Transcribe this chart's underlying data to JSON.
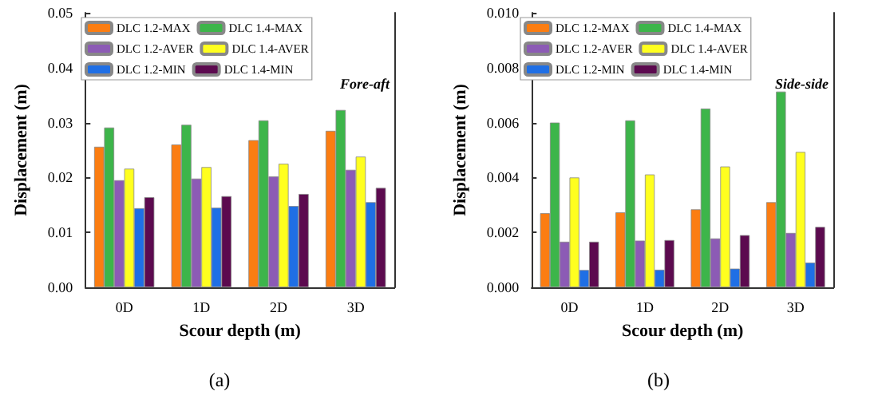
{
  "chart_data": [
    {
      "type": "bar",
      "xlabel": "Scour depth (m)",
      "ylabel": "Displacement (m)",
      "annotations": [
        "Fore-aft",
        "(a)"
      ],
      "categories": [
        "0D",
        "1D",
        "2D",
        "3D"
      ],
      "series": [
        {
          "name": "DLC 1.2-MAX",
          "color": "#fb7d12",
          "values": [
            0.0256,
            0.026,
            0.0268,
            0.0285
          ]
        },
        {
          "name": "DLC 1.4-MAX",
          "color": "#3db54a",
          "values": [
            0.0291,
            0.0296,
            0.0304,
            0.0323
          ]
        },
        {
          "name": "DLC 1.2-AVER",
          "color": "#8c5bb5",
          "values": [
            0.0195,
            0.0198,
            0.0202,
            0.0214
          ]
        },
        {
          "name": "DLC 1.4-AVER",
          "color": "#ffff1f",
          "values": [
            0.0216,
            0.0219,
            0.0225,
            0.0238
          ]
        },
        {
          "name": "DLC 1.2-MIN",
          "color": "#1f6fe5",
          "values": [
            0.0144,
            0.0145,
            0.0148,
            0.0155
          ]
        },
        {
          "name": "DLC 1.4-MIN",
          "color": "#5c0a4f",
          "values": [
            0.0164,
            0.0166,
            0.017,
            0.0181
          ]
        }
      ],
      "ylim": [
        0,
        0.05
      ],
      "yticks": [
        {
          "value": 0,
          "label": "0.00"
        },
        {
          "value": 0.01,
          "label": "0.01"
        },
        {
          "value": 0.02,
          "label": "0.02"
        },
        {
          "value": 0.03,
          "label": "0.03"
        },
        {
          "value": 0.04,
          "label": "0.04"
        },
        {
          "value": 0.05,
          "label": "0.05"
        }
      ],
      "grid": false,
      "legend": "top left"
    },
    {
      "type": "bar",
      "xlabel": "Scour depth (m)",
      "ylabel": "Displacement (m)",
      "annotations": [
        "Side-side",
        "(b)"
      ],
      "categories": [
        "0D",
        "1D",
        "2D",
        "3D"
      ],
      "series": [
        {
          "name": "DLC 1.2-MAX",
          "color": "#fb7d12",
          "values": [
            0.0027,
            0.00273,
            0.00284,
            0.0031
          ]
        },
        {
          "name": "DLC 1.4-MAX",
          "color": "#3db54a",
          "values": [
            0.006,
            0.00608,
            0.00651,
            0.00713
          ]
        },
        {
          "name": "DLC 1.2-AVER",
          "color": "#8c5bb5",
          "values": [
            0.00166,
            0.0017,
            0.00178,
            0.00198
          ]
        },
        {
          "name": "DLC 1.4-AVER",
          "color": "#ffff1f",
          "values": [
            0.004,
            0.00411,
            0.0044,
            0.00493
          ]
        },
        {
          "name": "DLC 1.2-MIN",
          "color": "#1f6fe5",
          "values": [
            0.00063,
            0.00064,
            0.00068,
            0.0009
          ]
        },
        {
          "name": "DLC 1.4-MIN",
          "color": "#5c0a4f",
          "values": [
            0.00166,
            0.00172,
            0.0019,
            0.0022
          ]
        }
      ],
      "ylim": [
        0,
        0.01
      ],
      "yticks": [
        {
          "value": 0,
          "label": "0.000"
        },
        {
          "value": 0.002,
          "label": "0.002"
        },
        {
          "value": 0.004,
          "label": "0.004"
        },
        {
          "value": 0.006,
          "label": "0.006"
        },
        {
          "value": 0.008,
          "label": "0.008"
        },
        {
          "value": 0.01,
          "label": "0.010"
        }
      ],
      "grid": false,
      "legend": "top left"
    }
  ]
}
